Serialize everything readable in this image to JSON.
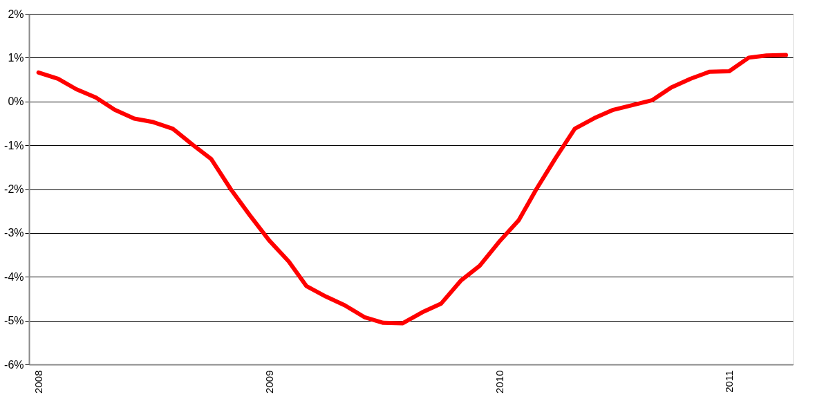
{
  "chart_data": {
    "type": "line",
    "x": [
      "2008-01",
      "2008-02",
      "2008-03",
      "2008-04",
      "2008-05",
      "2008-06",
      "2008-07",
      "2008-08",
      "2008-09",
      "2008-10",
      "2008-11",
      "2008-12",
      "2009-01",
      "2009-02",
      "2009-03",
      "2009-04",
      "2009-05",
      "2009-06",
      "2009-07",
      "2009-08",
      "2009-09",
      "2009-10",
      "2009-11",
      "2009-12",
      "2010-01",
      "2010-02",
      "2010-03",
      "2010-04",
      "2010-05",
      "2010-06",
      "2010-07",
      "2010-08",
      "2010-09",
      "2010-10",
      "2010-11",
      "2010-12",
      "2011-01",
      "2011-02",
      "2011-03",
      "2011-04"
    ],
    "series": [
      {
        "color": "#ff0000",
        "values": [
          0.66,
          0.52,
          0.28,
          0.09,
          -0.19,
          -0.39,
          -0.47,
          -0.62,
          -0.98,
          -1.31,
          -2.0,
          -2.59,
          -3.17,
          -3.65,
          -4.21,
          -4.45,
          -4.65,
          -4.92,
          -5.05,
          -5.06,
          -4.81,
          -4.61,
          -4.09,
          -3.75,
          -3.2,
          -2.71,
          -2.0,
          -1.28,
          -0.62,
          -0.38,
          -0.19,
          -0.08,
          0.03,
          0.32,
          0.52,
          0.68,
          0.69,
          1.0,
          1.05,
          1.06
        ]
      }
    ],
    "xlim": [
      "2007-12-17",
      "2011-04-12"
    ],
    "xticks": [
      "2008",
      "2009",
      "2010",
      "2011"
    ],
    "ylim": [
      -6,
      2
    ],
    "yticks": [
      {
        "value": -6,
        "label": "-6%"
      },
      {
        "value": -5,
        "label": "-5%"
      },
      {
        "value": -4,
        "label": "-4%"
      },
      {
        "value": -3,
        "label": "-3%"
      },
      {
        "value": -2,
        "label": "-2%"
      },
      {
        "value": -1,
        "label": "-1%"
      },
      {
        "value": 0,
        "label": "0%"
      },
      {
        "value": 1,
        "label": "1%"
      },
      {
        "value": 2,
        "label": "2%"
      }
    ],
    "grid": "y",
    "legend": false,
    "marker": "none",
    "line_style": "solid"
  }
}
